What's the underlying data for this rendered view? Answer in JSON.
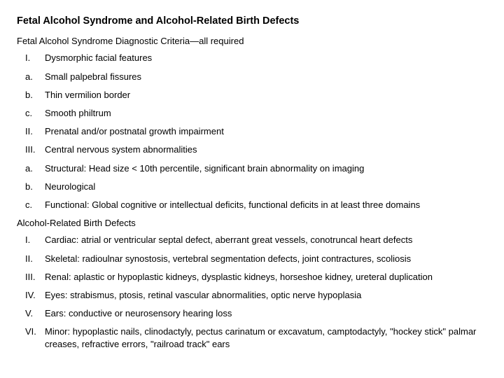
{
  "title": "Fetal Alcohol Syndrome and Alcohol-Related Birth Defects",
  "section1": {
    "header": "Fetal Alcohol Syndrome Diagnostic Criteria—all required",
    "items": [
      {
        "marker": "I.",
        "text": "Dysmorphic facial features"
      },
      {
        "marker": "a.",
        "text": "Small palpebral fissures"
      },
      {
        "marker": "b.",
        "text": "Thin vermilion border"
      },
      {
        "marker": "c.",
        "text": "Smooth philtrum"
      },
      {
        "marker": "II.",
        "text": "Prenatal and/or postnatal growth impairment"
      },
      {
        "marker": "III.",
        "text": "Central nervous system abnormalities"
      },
      {
        "marker": "a.",
        "text": "Structural: Head size < 10th percentile, significant brain abnormality on imaging"
      },
      {
        "marker": "b.",
        "text": "Neurological"
      },
      {
        "marker": "c.",
        "text": "Functional: Global cognitive or intellectual deficits, functional deficits in at least three domains"
      }
    ]
  },
  "section2": {
    "header": "Alcohol-Related Birth Defects",
    "items": [
      {
        "marker": "I.",
        "text": "Cardiac: atrial or ventricular septal defect, aberrant great vessels, conotruncal heart defects"
      },
      {
        "marker": "II.",
        "text": "Skeletal: radioulnar synostosis, vertebral segmentation defects, joint contractures, scoliosis"
      },
      {
        "marker": "III.",
        "text": "Renal: aplastic or hypoplastic kidneys, dysplastic kidneys, horseshoe kidney, ureteral duplication"
      },
      {
        "marker": "IV.",
        "text": "Eyes: strabismus, ptosis, retinal vascular abnormalities, optic nerve hypoplasia"
      },
      {
        "marker": "V.",
        "text": "Ears: conductive or neurosensory hearing loss"
      },
      {
        "marker": "VI.",
        "text": "Minor: hypoplastic nails, clinodactyly, pectus carinatum or excavatum, camptodactyly, \"hockey stick\" palmar creases, refractive errors, \"railroad track\" ears"
      }
    ]
  }
}
